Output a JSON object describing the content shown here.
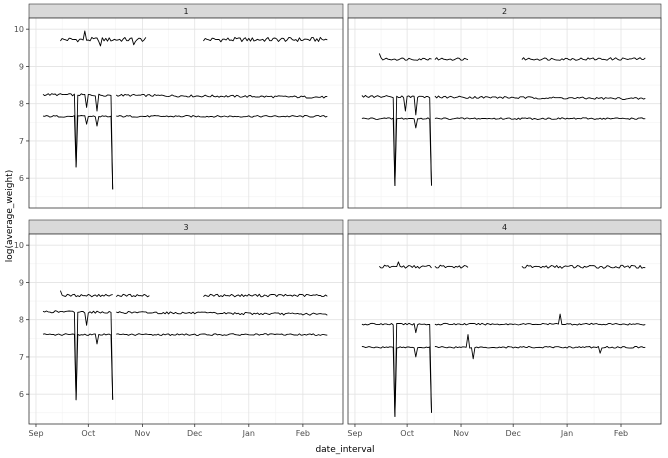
{
  "chart_data": {
    "type": "line",
    "xlabel": "date_interval",
    "ylabel": "log(average_weight)",
    "x_tick_labels": [
      "Sep",
      "Oct",
      "Nov",
      "Dec",
      "Jan",
      "Feb"
    ],
    "x_tick_dates": [
      "2019-09-01",
      "2019-10-01",
      "2019-11-01",
      "2019-12-01",
      "2020-01-01",
      "2020-02-01"
    ],
    "xlim": [
      "2019-08-28",
      "2020-02-24"
    ],
    "y_ticks": [
      6,
      7,
      8,
      9,
      10
    ],
    "ylim": [
      5.2,
      10.3
    ],
    "grid": true,
    "theme": "bw-facets",
    "line_color": "#000000",
    "strip_fill": "#d9d9d9",
    "panels": [
      {
        "label": "1",
        "series": [
          {
            "level": 9.72,
            "amp": 0.1,
            "segments": [
              [
                "2019-09-15",
                "2019-11-03"
              ],
              [
                "2019-12-06",
                "2020-02-15"
              ]
            ],
            "spikes": [
              {
                "date": "2019-09-29",
                "value": 9.95
              },
              {
                "date": "2019-10-08",
                "value": 9.55
              },
              {
                "date": "2019-10-27",
                "value": 9.58
              }
            ]
          },
          {
            "level": 8.25,
            "amp": 0.05,
            "drift": -0.08,
            "segments": [
              [
                "2019-09-05",
                "2019-10-15"
              ],
              [
                "2019-10-17",
                "2020-02-15"
              ]
            ],
            "spikes": [
              {
                "date": "2019-09-24",
                "value": 6.3
              },
              {
                "date": "2019-10-15",
                "value": 5.7
              },
              {
                "date": "2019-09-30",
                "value": 7.9
              },
              {
                "date": "2019-10-06",
                "value": 7.8
              }
            ]
          },
          {
            "level": 7.66,
            "amp": 0.04,
            "segments": [
              [
                "2019-09-05",
                "2019-10-15"
              ],
              [
                "2019-10-17",
                "2020-02-15"
              ]
            ],
            "spikes": [
              {
                "date": "2019-09-24",
                "value": 6.3
              },
              {
                "date": "2019-10-15",
                "value": 5.7
              },
              {
                "date": "2019-10-06",
                "value": 7.4
              },
              {
                "date": "2019-09-30",
                "value": 7.45
              }
            ]
          }
        ]
      },
      {
        "label": "2",
        "series": [
          {
            "level": 9.2,
            "amp": 0.06,
            "segments": [
              [
                "2019-09-15",
                "2019-10-15"
              ],
              [
                "2019-10-17",
                "2019-11-05"
              ],
              [
                "2019-12-06",
                "2020-02-15"
              ]
            ],
            "spikes": [
              {
                "date": "2019-09-15",
                "value": 9.35
              }
            ]
          },
          {
            "level": 8.2,
            "amp": 0.05,
            "drift": -0.07,
            "segments": [
              [
                "2019-09-05",
                "2019-10-15"
              ],
              [
                "2019-10-17",
                "2020-02-15"
              ]
            ],
            "spikes": [
              {
                "date": "2019-09-24",
                "value": 5.8
              },
              {
                "date": "2019-10-15",
                "value": 5.8
              },
              {
                "date": "2019-09-30",
                "value": 7.8
              },
              {
                "date": "2019-10-06",
                "value": 7.7
              }
            ]
          },
          {
            "level": 7.6,
            "amp": 0.04,
            "segments": [
              [
                "2019-09-05",
                "2019-10-15"
              ],
              [
                "2019-10-17",
                "2020-02-15"
              ]
            ],
            "spikes": [
              {
                "date": "2019-09-24",
                "value": 5.8
              },
              {
                "date": "2019-10-15",
                "value": 5.8
              },
              {
                "date": "2019-10-06",
                "value": 7.35
              }
            ]
          }
        ]
      },
      {
        "label": "3",
        "series": [
          {
            "level": 8.65,
            "amp": 0.06,
            "segments": [
              [
                "2019-09-15",
                "2019-10-15"
              ],
              [
                "2019-10-17",
                "2019-11-05"
              ],
              [
                "2019-12-06",
                "2020-02-15"
              ]
            ],
            "spikes": [
              {
                "date": "2019-09-15",
                "value": 8.78
              }
            ]
          },
          {
            "level": 8.22,
            "amp": 0.05,
            "drift": -0.08,
            "segments": [
              [
                "2019-09-05",
                "2019-10-15"
              ],
              [
                "2019-10-17",
                "2020-02-15"
              ]
            ],
            "spikes": [
              {
                "date": "2019-09-24",
                "value": 5.85
              },
              {
                "date": "2019-10-15",
                "value": 5.85
              },
              {
                "date": "2019-09-30",
                "value": 7.85
              }
            ]
          },
          {
            "level": 7.6,
            "amp": 0.04,
            "segments": [
              [
                "2019-09-05",
                "2019-10-15"
              ],
              [
                "2019-10-17",
                "2020-02-15"
              ]
            ],
            "spikes": [
              {
                "date": "2019-09-24",
                "value": 5.85
              },
              {
                "date": "2019-10-15",
                "value": 5.85
              },
              {
                "date": "2019-10-06",
                "value": 7.35
              }
            ]
          }
        ]
      },
      {
        "label": "4",
        "series": [
          {
            "level": 9.42,
            "amp": 0.07,
            "segments": [
              [
                "2019-09-15",
                "2019-10-15"
              ],
              [
                "2019-10-17",
                "2019-11-05"
              ],
              [
                "2019-12-06",
                "2020-02-15"
              ]
            ],
            "spikes": [
              {
                "date": "2019-09-26",
                "value": 9.55
              }
            ]
          },
          {
            "level": 7.88,
            "amp": 0.04,
            "segments": [
              [
                "2019-09-05",
                "2019-10-15"
              ],
              [
                "2019-10-17",
                "2020-02-15"
              ]
            ],
            "spikes": [
              {
                "date": "2019-09-24",
                "value": 5.4
              },
              {
                "date": "2019-10-15",
                "value": 5.5
              },
              {
                "date": "2019-12-28",
                "value": 8.15
              },
              {
                "date": "2019-10-06",
                "value": 7.65
              }
            ]
          },
          {
            "level": 7.26,
            "amp": 0.04,
            "segments": [
              [
                "2019-09-05",
                "2019-10-15"
              ],
              [
                "2019-10-17",
                "2020-02-15"
              ]
            ],
            "spikes": [
              {
                "date": "2019-09-24",
                "value": 5.4
              },
              {
                "date": "2019-10-15",
                "value": 5.5
              },
              {
                "date": "2019-10-06",
                "value": 7.0
              },
              {
                "date": "2019-11-05",
                "value": 7.6
              },
              {
                "date": "2019-11-08",
                "value": 6.95
              },
              {
                "date": "2020-01-20",
                "value": 7.1
              }
            ]
          }
        ]
      }
    ]
  }
}
